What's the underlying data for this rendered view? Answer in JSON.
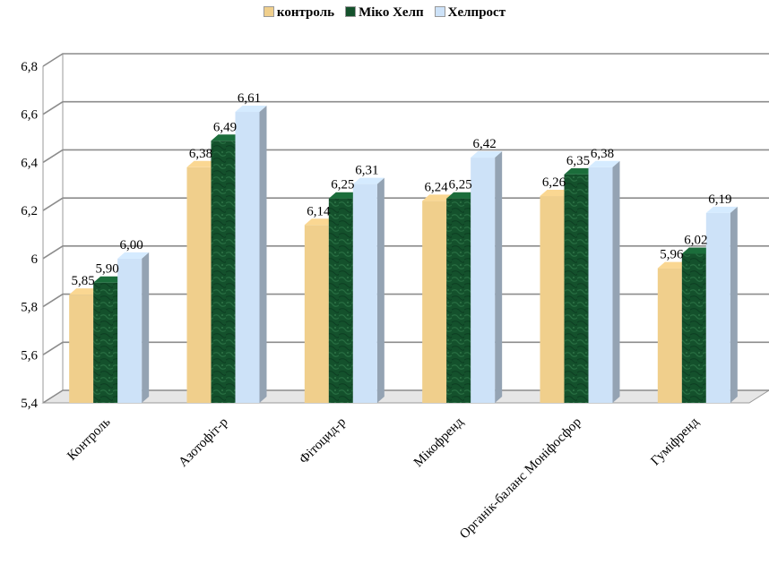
{
  "chart_data": {
    "type": "bar",
    "title": "",
    "xlabel": "",
    "ylabel": "",
    "categories": [
      "Контроль",
      "Азотофіт-р",
      "Фітоцид-р",
      "Мікофренд",
      "Органік-баланс Моніфосфор",
      "Гуміфренд"
    ],
    "series": [
      {
        "name": "контроль",
        "values": [
          5.85,
          6.38,
          6.14,
          6.24,
          6.26,
          5.96
        ],
        "labels": [
          "5,85",
          "6,38",
          "6,14",
          "6,24",
          "6,26",
          "5,96"
        ],
        "color": "#f0cf8c"
      },
      {
        "name": "Міко Хелп",
        "values": [
          5.9,
          6.49,
          6.25,
          6.25,
          6.35,
          6.02
        ],
        "labels": [
          "5,90",
          "6,49",
          "6,25",
          "6,25",
          "6,35",
          "6,02"
        ],
        "color": "#14512c"
      },
      {
        "name": "Хелпрост",
        "values": [
          6.0,
          6.61,
          6.31,
          6.42,
          6.38,
          6.19
        ],
        "labels": [
          "6,00",
          "6,61",
          "6,31",
          "6,42",
          "6,38",
          "6,19"
        ],
        "color": "#cde2f8"
      }
    ],
    "ylim": [
      5.4,
      6.8
    ],
    "yticks": [
      5.4,
      5.6,
      5.8,
      6,
      6.2,
      6.4,
      6.6,
      6.8
    ],
    "ytick_labels": [
      "5,4",
      "5,6",
      "5,8",
      "6",
      "6,2",
      "6,4",
      "6,6",
      "6,8"
    ],
    "grid": true,
    "legend_position": "top-center",
    "style": "3d-clustered-column"
  }
}
